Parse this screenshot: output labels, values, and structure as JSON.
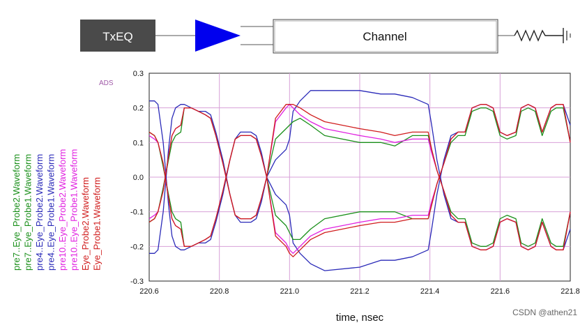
{
  "diagram": {
    "source_block_label": "TxEQ",
    "channel_label": "Channel"
  },
  "ads_tag": "ADS",
  "watermark": "CSDN @athen21",
  "legend": {
    "entries": [
      {
        "label": "pre7..Eye_Probe2.Waveform",
        "color": "#1a8f1a"
      },
      {
        "label": "pre7..Eye_Probe1.Waveform",
        "color": "#1a8f1a"
      },
      {
        "label": "pre4..Eye_Probe2.Waveform",
        "color": "#2a2ab8"
      },
      {
        "label": "pre4..Eye_Probe1.Waveform",
        "color": "#2a2ab8"
      },
      {
        "label": "pre10..Eye_Probe2.Waveform",
        "color": "#e020e0"
      },
      {
        "label": "pre10..Eye_Probe1.Waveform",
        "color": "#e020e0"
      },
      {
        "label": "Eye_Probe2.Waveform",
        "color": "#d01c1c"
      },
      {
        "label": "Eye_Probe1.Waveform",
        "color": "#d01c1c"
      }
    ]
  },
  "chart_data": {
    "type": "line",
    "xlabel": "time, nsec",
    "ylabel": "",
    "xlim": [
      220.6,
      221.8
    ],
    "ylim": [
      -0.3,
      0.3
    ],
    "xticks": [
      "220.6",
      "220.8",
      "221.0",
      "221.2",
      "221.4",
      "221.6",
      "221.8"
    ],
    "yticks": [
      "0.3",
      "0.2",
      "0.1",
      "0.0",
      "-0.1",
      "-0.2",
      "-0.3"
    ],
    "grid": true,
    "grid_color": "#d8a0d8",
    "series": [
      {
        "name": "pre4..Eye_Probe2.Waveform",
        "color": "#2a2ab8",
        "x": [
          220.6,
          220.615,
          220.625,
          220.64,
          220.655,
          220.665,
          220.675,
          220.69,
          220.7,
          220.72,
          220.74,
          220.76,
          220.775,
          220.79,
          220.81,
          220.83,
          220.845,
          220.86,
          220.875,
          220.89,
          220.905,
          220.92,
          220.935,
          220.96,
          220.99,
          221.0,
          221.01,
          221.03,
          221.06,
          221.1,
          221.2,
          221.26,
          221.3,
          221.35,
          221.395,
          221.405,
          221.42,
          221.44,
          221.46,
          221.48,
          221.5,
          221.52,
          221.545,
          221.56,
          221.58,
          221.6,
          221.62,
          221.645,
          221.66,
          221.68,
          221.7,
          221.72,
          221.745,
          221.76,
          221.78,
          221.8
        ],
        "y": [
          0.22,
          0.22,
          0.21,
          0.1,
          -0.08,
          -0.17,
          -0.2,
          -0.21,
          -0.21,
          -0.2,
          -0.19,
          -0.19,
          -0.18,
          -0.13,
          -0.05,
          0.05,
          0.11,
          0.13,
          0.13,
          0.13,
          0.12,
          0.07,
          0.0,
          -0.05,
          -0.08,
          -0.11,
          -0.19,
          -0.22,
          -0.25,
          -0.27,
          -0.26,
          -0.24,
          -0.24,
          -0.23,
          -0.21,
          -0.15,
          -0.05,
          0.05,
          0.12,
          0.13,
          0.13,
          0.2,
          0.21,
          0.21,
          0.2,
          0.13,
          0.12,
          0.13,
          0.2,
          0.21,
          0.2,
          0.13,
          0.2,
          0.21,
          0.21,
          0.15
        ]
      },
      {
        "name": "pre4..Eye_Probe1.Waveform",
        "color": "#2a2ab8",
        "x": [
          220.6,
          220.615,
          220.625,
          220.64,
          220.655,
          220.665,
          220.675,
          220.69,
          220.7,
          220.72,
          220.74,
          220.76,
          220.775,
          220.79,
          220.81,
          220.83,
          220.845,
          220.86,
          220.875,
          220.89,
          220.905,
          220.92,
          220.935,
          220.96,
          220.99,
          221.0,
          221.01,
          221.03,
          221.06,
          221.1,
          221.2,
          221.26,
          221.3,
          221.35,
          221.395,
          221.405,
          221.42,
          221.44,
          221.46,
          221.48,
          221.5,
          221.52,
          221.545,
          221.56,
          221.58,
          221.6,
          221.62,
          221.645,
          221.66,
          221.68,
          221.7,
          221.72,
          221.745,
          221.76,
          221.78,
          221.8
        ],
        "y": [
          -0.22,
          -0.22,
          -0.21,
          -0.1,
          0.08,
          0.17,
          0.2,
          0.21,
          0.21,
          0.2,
          0.19,
          0.19,
          0.18,
          0.13,
          0.05,
          -0.05,
          -0.11,
          -0.13,
          -0.13,
          -0.13,
          -0.12,
          -0.07,
          0.0,
          0.05,
          0.08,
          0.11,
          0.19,
          0.22,
          0.25,
          0.25,
          0.25,
          0.24,
          0.24,
          0.23,
          0.21,
          0.15,
          0.05,
          -0.05,
          -0.12,
          -0.13,
          -0.13,
          -0.2,
          -0.21,
          -0.21,
          -0.2,
          -0.13,
          -0.12,
          -0.13,
          -0.2,
          -0.21,
          -0.2,
          -0.13,
          -0.2,
          -0.21,
          -0.21,
          -0.15
        ]
      },
      {
        "name": "pre7..Eye_Probe2.Waveform",
        "color": "#1a8f1a",
        "x": [
          220.6,
          220.615,
          220.625,
          220.64,
          220.655,
          220.665,
          220.675,
          220.69,
          220.7,
          220.72,
          220.74,
          220.76,
          220.775,
          220.79,
          220.81,
          220.83,
          220.845,
          220.86,
          220.875,
          220.89,
          220.905,
          220.92,
          220.935,
          220.96,
          220.99,
          221.0,
          221.01,
          221.03,
          221.06,
          221.1,
          221.2,
          221.26,
          221.3,
          221.35,
          221.395,
          221.405,
          221.42,
          221.44,
          221.46,
          221.48,
          221.5,
          221.52,
          221.545,
          221.56,
          221.58,
          221.6,
          221.62,
          221.645,
          221.66,
          221.68,
          221.7,
          221.72,
          221.745,
          221.76,
          221.78,
          221.8
        ],
        "y": [
          0.13,
          0.12,
          0.1,
          0.03,
          -0.05,
          -0.1,
          -0.12,
          -0.13,
          -0.2,
          -0.2,
          -0.19,
          -0.18,
          -0.17,
          -0.12,
          -0.04,
          0.05,
          0.11,
          0.12,
          0.12,
          0.12,
          0.11,
          0.06,
          0.0,
          0.11,
          0.14,
          0.15,
          0.16,
          0.17,
          0.15,
          0.12,
          0.1,
          0.1,
          0.09,
          0.12,
          0.12,
          0.08,
          0.02,
          -0.04,
          -0.1,
          -0.12,
          -0.12,
          -0.19,
          -0.2,
          -0.2,
          -0.19,
          -0.12,
          -0.11,
          -0.12,
          -0.19,
          -0.2,
          -0.19,
          -0.12,
          -0.19,
          -0.2,
          -0.2,
          -0.1
        ]
      },
      {
        "name": "pre7..Eye_Probe1.Waveform",
        "color": "#1a8f1a",
        "x": [
          220.6,
          220.615,
          220.625,
          220.64,
          220.655,
          220.665,
          220.675,
          220.69,
          220.7,
          220.72,
          220.74,
          220.76,
          220.775,
          220.79,
          220.81,
          220.83,
          220.845,
          220.86,
          220.875,
          220.89,
          220.905,
          220.92,
          220.935,
          220.96,
          220.99,
          221.0,
          221.01,
          221.03,
          221.06,
          221.1,
          221.2,
          221.26,
          221.3,
          221.35,
          221.395,
          221.405,
          221.42,
          221.44,
          221.46,
          221.48,
          221.5,
          221.52,
          221.545,
          221.56,
          221.58,
          221.6,
          221.62,
          221.645,
          221.66,
          221.68,
          221.7,
          221.72,
          221.745,
          221.76,
          221.78,
          221.8
        ],
        "y": [
          -0.13,
          -0.12,
          -0.1,
          -0.03,
          0.05,
          0.1,
          0.12,
          0.13,
          0.2,
          0.2,
          0.19,
          0.18,
          0.17,
          0.12,
          0.04,
          -0.05,
          -0.11,
          -0.12,
          -0.12,
          -0.12,
          -0.11,
          -0.06,
          0.0,
          -0.11,
          -0.14,
          -0.16,
          -0.18,
          -0.18,
          -0.15,
          -0.12,
          -0.1,
          -0.1,
          -0.1,
          -0.12,
          -0.12,
          -0.08,
          -0.02,
          0.04,
          0.1,
          0.12,
          0.12,
          0.19,
          0.2,
          0.2,
          0.19,
          0.12,
          0.11,
          0.12,
          0.19,
          0.2,
          0.19,
          0.12,
          0.19,
          0.2,
          0.2,
          0.1
        ]
      },
      {
        "name": "pre10..Eye_Probe2.Waveform",
        "color": "#e020e0",
        "x": [
          220.6,
          220.615,
          220.625,
          220.64,
          220.655,
          220.665,
          220.675,
          220.69,
          220.7,
          220.72,
          220.74,
          220.76,
          220.775,
          220.79,
          220.81,
          220.83,
          220.845,
          220.86,
          220.875,
          220.89,
          220.905,
          220.92,
          220.935,
          220.96,
          220.99,
          221.0,
          221.01,
          221.03,
          221.06,
          221.1,
          221.2,
          221.26,
          221.3,
          221.35,
          221.395,
          221.405,
          221.42,
          221.44,
          221.46,
          221.48,
          221.5,
          221.52,
          221.545,
          221.56,
          221.58,
          221.6,
          221.62,
          221.645,
          221.66,
          221.68,
          221.7,
          221.72,
          221.745,
          221.76,
          221.78,
          221.8
        ],
        "y": [
          0.12,
          0.11,
          0.1,
          0.04,
          -0.06,
          -0.12,
          -0.14,
          -0.15,
          -0.2,
          -0.2,
          -0.19,
          -0.18,
          -0.17,
          -0.12,
          -0.04,
          0.05,
          0.11,
          0.12,
          0.12,
          0.12,
          0.11,
          0.06,
          0.0,
          0.16,
          0.2,
          0.21,
          0.2,
          0.18,
          0.16,
          0.14,
          0.12,
          0.11,
          0.1,
          0.11,
          0.11,
          0.07,
          0.02,
          -0.04,
          -0.11,
          -0.13,
          -0.13,
          -0.2,
          -0.21,
          -0.21,
          -0.2,
          -0.13,
          -0.12,
          -0.13,
          -0.2,
          -0.21,
          -0.2,
          -0.13,
          -0.2,
          -0.21,
          -0.21,
          -0.1
        ]
      },
      {
        "name": "pre10..Eye_Probe1.Waveform",
        "color": "#e020e0",
        "x": [
          220.6,
          220.615,
          220.625,
          220.64,
          220.655,
          220.665,
          220.675,
          220.69,
          220.7,
          220.72,
          220.74,
          220.76,
          220.775,
          220.79,
          220.81,
          220.83,
          220.845,
          220.86,
          220.875,
          220.89,
          220.905,
          220.92,
          220.935,
          220.96,
          220.99,
          221.0,
          221.01,
          221.03,
          221.06,
          221.1,
          221.2,
          221.26,
          221.3,
          221.35,
          221.395,
          221.405,
          221.42,
          221.44,
          221.46,
          221.48,
          221.5,
          221.52,
          221.545,
          221.56,
          221.58,
          221.6,
          221.62,
          221.645,
          221.66,
          221.68,
          221.7,
          221.72,
          221.745,
          221.76,
          221.78,
          221.8
        ],
        "y": [
          -0.12,
          -0.11,
          -0.1,
          -0.04,
          0.06,
          0.12,
          0.14,
          0.15,
          0.2,
          0.2,
          0.19,
          0.18,
          0.17,
          0.12,
          0.04,
          -0.05,
          -0.11,
          -0.12,
          -0.12,
          -0.12,
          -0.11,
          -0.06,
          0.0,
          -0.16,
          -0.19,
          -0.21,
          -0.22,
          -0.2,
          -0.17,
          -0.15,
          -0.13,
          -0.12,
          -0.12,
          -0.11,
          -0.11,
          -0.07,
          -0.02,
          0.04,
          0.11,
          0.13,
          0.13,
          0.2,
          0.21,
          0.21,
          0.2,
          0.13,
          0.12,
          0.13,
          0.2,
          0.21,
          0.2,
          0.13,
          0.2,
          0.21,
          0.21,
          0.1
        ]
      },
      {
        "name": "Eye_Probe2.Waveform",
        "color": "#d01c1c",
        "x": [
          220.6,
          220.615,
          220.625,
          220.64,
          220.655,
          220.665,
          220.675,
          220.69,
          220.7,
          220.72,
          220.74,
          220.76,
          220.775,
          220.79,
          220.81,
          220.83,
          220.845,
          220.86,
          220.875,
          220.89,
          220.905,
          220.92,
          220.935,
          220.96,
          220.99,
          221.0,
          221.01,
          221.03,
          221.06,
          221.1,
          221.2,
          221.26,
          221.3,
          221.35,
          221.395,
          221.405,
          221.42,
          221.44,
          221.46,
          221.48,
          221.5,
          221.52,
          221.545,
          221.56,
          221.58,
          221.6,
          221.62,
          221.645,
          221.66,
          221.68,
          221.7,
          221.72,
          221.745,
          221.76,
          221.78,
          221.8
        ],
        "y": [
          0.13,
          0.12,
          0.1,
          0.04,
          -0.06,
          -0.12,
          -0.14,
          -0.15,
          -0.2,
          -0.2,
          -0.19,
          -0.18,
          -0.17,
          -0.12,
          -0.04,
          0.05,
          0.11,
          0.12,
          0.12,
          0.12,
          0.11,
          0.06,
          0.0,
          0.17,
          0.21,
          0.21,
          0.21,
          0.2,
          0.18,
          0.16,
          0.14,
          0.13,
          0.12,
          0.13,
          0.13,
          0.08,
          0.02,
          -0.04,
          -0.11,
          -0.13,
          -0.13,
          -0.2,
          -0.21,
          -0.21,
          -0.2,
          -0.13,
          -0.12,
          -0.13,
          -0.2,
          -0.21,
          -0.2,
          -0.13,
          -0.2,
          -0.21,
          -0.21,
          -0.1
        ]
      },
      {
        "name": "Eye_Probe1.Waveform",
        "color": "#d01c1c",
        "x": [
          220.6,
          220.615,
          220.625,
          220.64,
          220.655,
          220.665,
          220.675,
          220.69,
          220.7,
          220.72,
          220.74,
          220.76,
          220.775,
          220.79,
          220.81,
          220.83,
          220.845,
          220.86,
          220.875,
          220.89,
          220.905,
          220.92,
          220.935,
          220.96,
          220.99,
          221.0,
          221.01,
          221.03,
          221.06,
          221.1,
          221.2,
          221.26,
          221.3,
          221.35,
          221.395,
          221.405,
          221.42,
          221.44,
          221.46,
          221.48,
          221.5,
          221.52,
          221.545,
          221.56,
          221.58,
          221.6,
          221.62,
          221.645,
          221.66,
          221.68,
          221.7,
          221.72,
          221.745,
          221.76,
          221.78,
          221.8
        ],
        "y": [
          -0.13,
          -0.12,
          -0.1,
          -0.04,
          0.06,
          0.12,
          0.14,
          0.15,
          0.2,
          0.2,
          0.19,
          0.18,
          0.17,
          0.12,
          0.04,
          -0.05,
          -0.11,
          -0.12,
          -0.12,
          -0.12,
          -0.11,
          -0.06,
          0.0,
          -0.17,
          -0.2,
          -0.22,
          -0.23,
          -0.21,
          -0.18,
          -0.16,
          -0.14,
          -0.13,
          -0.13,
          -0.12,
          -0.12,
          -0.08,
          -0.02,
          0.04,
          0.11,
          0.13,
          0.13,
          0.2,
          0.21,
          0.21,
          0.2,
          0.13,
          0.12,
          0.13,
          0.2,
          0.21,
          0.2,
          0.13,
          0.2,
          0.21,
          0.21,
          0.1
        ]
      }
    ]
  }
}
